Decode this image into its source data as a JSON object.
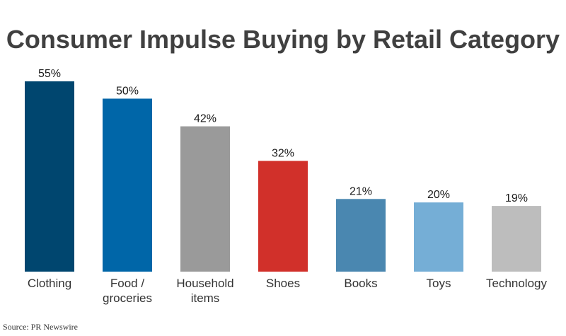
{
  "chart_data": {
    "type": "bar",
    "title": "Consumer Impulse Buying by Retail Category",
    "categories": [
      "Clothing",
      "Food / groceries",
      "Household items",
      "Shoes",
      "Books",
      "Toys",
      "Technology"
    ],
    "category_lines": [
      [
        "Clothing"
      ],
      [
        "Food /",
        "groceries"
      ],
      [
        "Household",
        "items"
      ],
      [
        "Shoes"
      ],
      [
        "Books"
      ],
      [
        "Toys"
      ],
      [
        "Technology"
      ]
    ],
    "values": [
      55,
      50,
      42,
      32,
      21,
      20,
      19
    ],
    "value_labels": [
      "55%",
      "50%",
      "42%",
      "32%",
      "21%",
      "20%",
      "19%"
    ],
    "bar_colors": [
      "#00466f",
      "#0066a8",
      "#9a9a9a",
      "#d1302a",
      "#4a87b0",
      "#75aed6",
      "#bdbdbd"
    ],
    "ylim": [
      0,
      55
    ],
    "grid": false,
    "legend": "none",
    "xlabel": "",
    "ylabel": ""
  },
  "source": "Source: PR Newswire"
}
